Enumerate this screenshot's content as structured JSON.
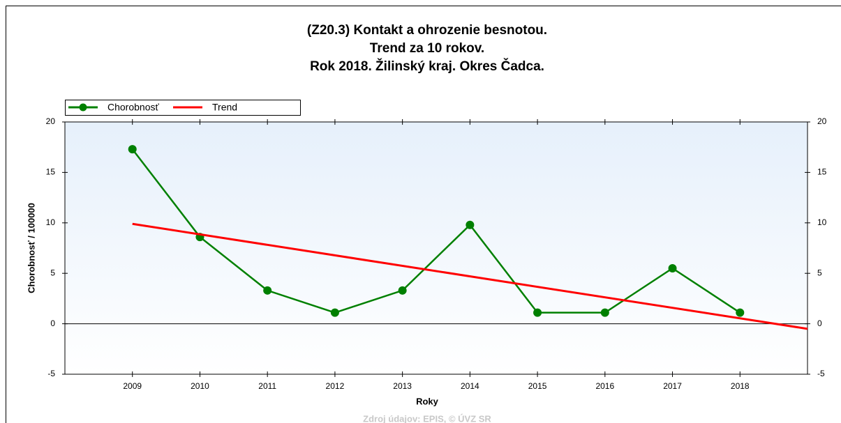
{
  "chart_data": {
    "type": "line",
    "title": [
      "(Z20.3)  Kontakt a ohrozenie besnotou.",
      "Trend za 10 rokov.",
      "Rok 2018. Žilinský kraj. Okres Čadca."
    ],
    "x_label": "Roky",
    "y_label": "Chorobnosť / 100000",
    "source": "Zdroj údajov: EPIS, © ÚVZ SR",
    "x": [
      2009,
      2010,
      2011,
      2012,
      2013,
      2014,
      2015,
      2016,
      2017,
      2018
    ],
    "series": [
      {
        "name": "Chorobnosť",
        "color": "#008000",
        "markers": true,
        "values": [
          17.3,
          8.6,
          3.3,
          1.1,
          3.3,
          9.8,
          1.1,
          1.1,
          5.5,
          1.1
        ]
      },
      {
        "name": "Trend",
        "color": "#ff0000",
        "markers": false,
        "x": [
          2009,
          2019
        ],
        "values": [
          9.9,
          -0.5
        ]
      }
    ],
    "xlim": [
      2008,
      2019
    ],
    "xticks": [
      2009,
      2010,
      2011,
      2012,
      2013,
      2014,
      2015,
      2016,
      2017,
      2018
    ],
    "ylim": [
      -5,
      20
    ],
    "yticks": [
      -5,
      0,
      5,
      10,
      15,
      20
    ],
    "y2lim": [
      -5,
      20
    ],
    "y2ticks": [
      -5,
      0,
      5,
      10,
      15,
      20
    ],
    "legend": "top-left"
  }
}
